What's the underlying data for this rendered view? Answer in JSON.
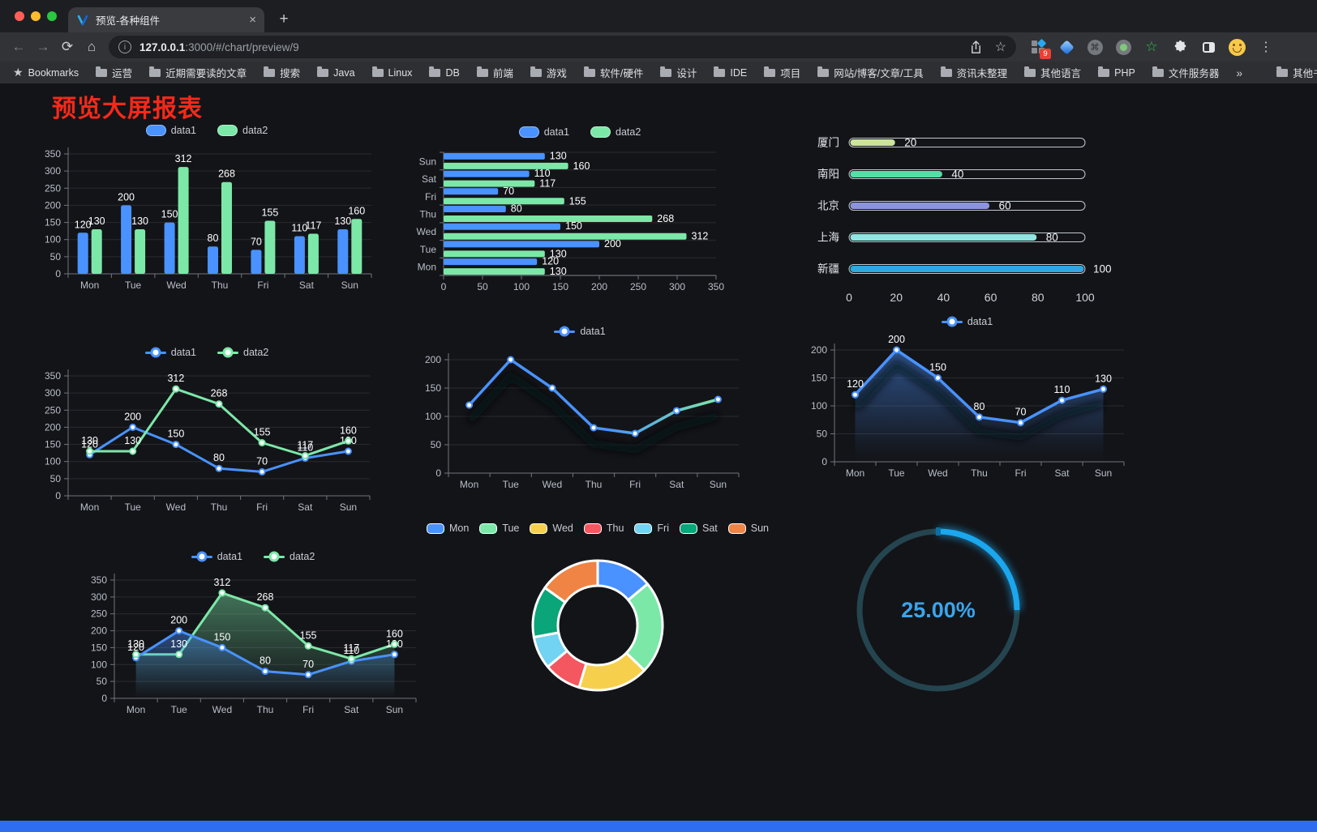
{
  "browser": {
    "tab_title": "预览-各种组件",
    "close_glyph": "×",
    "new_tab_glyph": "+",
    "url_host": "127.0.0.1",
    "url_rest": ":3000/#/chart/preview/9",
    "nav": {
      "back": "←",
      "forward": "→",
      "reload": "⟳",
      "home": "⌂",
      "info": "i"
    },
    "omnibox_icons": {
      "star": "☆"
    },
    "extensions": {
      "badge": "9",
      "cmd": "⌘",
      "star": "☆"
    },
    "menu_glyph": "⋮",
    "bookmarks_label": "Bookmarks",
    "bookmark_items": [
      "运营",
      "近期需要读的文章",
      "搜索",
      "Java",
      "Linux",
      "DB",
      "前端",
      "游戏",
      "软件/硬件",
      "设计",
      "IDE",
      "项目",
      "网站/博客/文章/工具",
      "资讯未整理",
      "其他语言",
      "PHP",
      "文件服务器"
    ],
    "bookmarks_overflow": "»",
    "other_bookmarks": "其他书签"
  },
  "page": {
    "title": "预览大屏报表",
    "title_color": "#f5291a"
  },
  "palette": {
    "blue": "#4992ff",
    "green": "#7ce8a8",
    "gauge_blue": "#1aa7ee",
    "red_title": "#f5291a"
  },
  "chart_data": [
    {
      "id": "bar-grouped",
      "type": "bar",
      "categories": [
        "Mon",
        "Tue",
        "Wed",
        "Thu",
        "Fri",
        "Sat",
        "Sun"
      ],
      "series": [
        {
          "name": "data1",
          "color": "#4992ff",
          "values": [
            120,
            200,
            150,
            80,
            70,
            110,
            130
          ]
        },
        {
          "name": "data2",
          "color": "#7ce8a8",
          "values": [
            130,
            130,
            312,
            268,
            155,
            117,
            160
          ]
        }
      ],
      "ylim": [
        0,
        350
      ],
      "yticks": [
        0,
        50,
        100,
        150,
        200,
        250,
        300,
        350
      ],
      "labels": true,
      "grid": true,
      "legend_position": "top"
    },
    {
      "id": "bar-horizontal",
      "type": "hbar",
      "categories": [
        "Mon",
        "Tue",
        "Wed",
        "Thu",
        "Fri",
        "Sat",
        "Sun"
      ],
      "series": [
        {
          "name": "data1",
          "color": "#4992ff",
          "values": [
            120,
            200,
            150,
            80,
            70,
            110,
            130
          ]
        },
        {
          "name": "data2",
          "color": "#7ce8a8",
          "values": [
            130,
            130,
            312,
            268,
            155,
            117,
            160
          ]
        }
      ],
      "xlim": [
        0,
        350
      ],
      "xticks": [
        0,
        50,
        100,
        150,
        200,
        250,
        300,
        350
      ],
      "labels": true,
      "grid": true,
      "legend_position": "top"
    },
    {
      "id": "capsule",
      "type": "capsule",
      "categories": [
        "厦门",
        "南阳",
        "北京",
        "上海",
        "新疆"
      ],
      "values": [
        20,
        40,
        60,
        80,
        100
      ],
      "colors": [
        "#cde49b",
        "#54dfa6",
        "#8d94de",
        "#8de6e1",
        "#2fa7e3"
      ],
      "xlim": [
        0,
        100
      ],
      "xticks": [
        0,
        20,
        40,
        60,
        80,
        100
      ]
    },
    {
      "id": "line-double",
      "type": "line",
      "categories": [
        "Mon",
        "Tue",
        "Wed",
        "Thu",
        "Fri",
        "Sat",
        "Sun"
      ],
      "series": [
        {
          "name": "data1",
          "color": "#4992ff",
          "values": [
            120,
            200,
            150,
            80,
            70,
            110,
            130
          ]
        },
        {
          "name": "data2",
          "color": "#7ce8a8",
          "values": [
            130,
            130,
            312,
            268,
            155,
            117,
            160
          ]
        }
      ],
      "ylim": [
        0,
        350
      ],
      "yticks": [
        0,
        50,
        100,
        150,
        200,
        250,
        300,
        350
      ],
      "labels": true,
      "grid": true,
      "legend_position": "top"
    },
    {
      "id": "line-gradient",
      "type": "gradient-line",
      "categories": [
        "Mon",
        "Tue",
        "Wed",
        "Thu",
        "Fri",
        "Sat",
        "Sun"
      ],
      "series": [
        {
          "name": "data1",
          "color": "#4992ff",
          "values": [
            120,
            200,
            150,
            80,
            70,
            110,
            130
          ]
        }
      ],
      "gradient": [
        "#4992ff",
        "#7ce8a8"
      ],
      "ylim": [
        0,
        200
      ],
      "yticks": [
        0,
        50,
        100,
        150,
        200
      ],
      "labels": false,
      "grid": true,
      "legend_position": "top"
    },
    {
      "id": "line-area",
      "type": "area-line",
      "categories": [
        "Mon",
        "Tue",
        "Wed",
        "Thu",
        "Fri",
        "Sat",
        "Sun"
      ],
      "series": [
        {
          "name": "data1",
          "color": "#4992ff",
          "values": [
            120,
            200,
            150,
            80,
            70,
            110,
            130
          ]
        }
      ],
      "ylim": [
        0,
        200
      ],
      "yticks": [
        0,
        50,
        100,
        150,
        200
      ],
      "labels": true,
      "grid": true,
      "legend_position": "top"
    },
    {
      "id": "area-double",
      "type": "area2",
      "categories": [
        "Mon",
        "Tue",
        "Wed",
        "Thu",
        "Fri",
        "Sat",
        "Sun"
      ],
      "series": [
        {
          "name": "data1",
          "color": "#4992ff",
          "values": [
            120,
            200,
            150,
            80,
            70,
            110,
            130
          ]
        },
        {
          "name": "data2",
          "color": "#7ce8a8",
          "values": [
            130,
            130,
            312,
            268,
            155,
            117,
            160
          ]
        }
      ],
      "ylim": [
        0,
        350
      ],
      "yticks": [
        0,
        50,
        100,
        150,
        200,
        250,
        300,
        350
      ],
      "labels": true,
      "grid": true,
      "legend_position": "top"
    },
    {
      "id": "donut",
      "type": "donut",
      "categories": [
        "Mon",
        "Tue",
        "Wed",
        "Thu",
        "Fri",
        "Sat",
        "Sun"
      ],
      "values": [
        120,
        200,
        150,
        80,
        70,
        110,
        130
      ],
      "colors": [
        "#4992ff",
        "#7ce8a8",
        "#f6d04d",
        "#f4575f",
        "#72d3f2",
        "#0aa578",
        "#f08445"
      ],
      "legend_position": "top"
    },
    {
      "id": "gauge",
      "type": "gauge",
      "value": 25,
      "label": "25.00%",
      "color": "#1aa7ee",
      "track": "#24454f",
      "text_color": "#3aa5ec"
    }
  ]
}
